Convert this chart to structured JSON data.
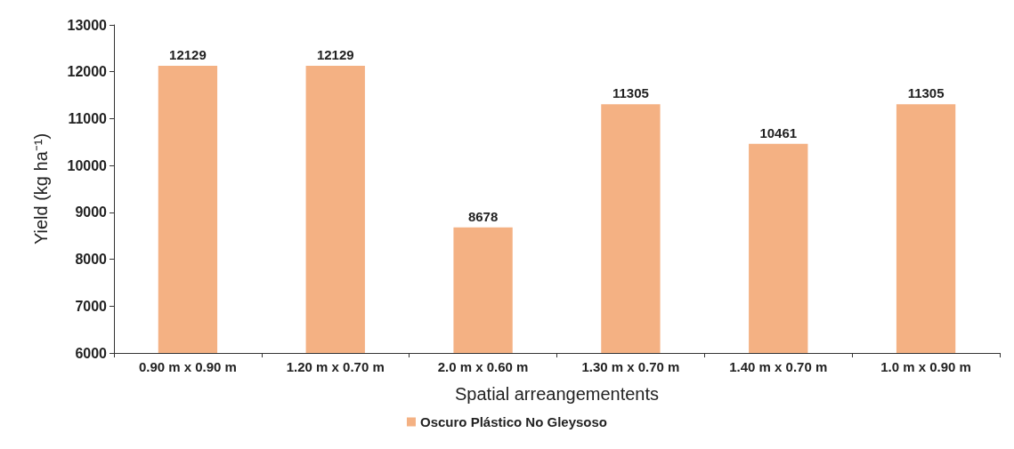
{
  "chart_data": {
    "type": "bar",
    "xlabel": "Spatial arreangementents",
    "ylabel": "Yield (kg ha⁻¹)",
    "categories": [
      "0.90 m x 0.90 m",
      "1.20 m x 0.70 m",
      "2.0 m x 0.60 m",
      "1.30 m x 0.70 m",
      "1.40 m x 0.70 m",
      "1.0 m x 0.90 m"
    ],
    "series": [
      {
        "name": "Oscuro Plástico No Gleysoso",
        "color": "#f4b183",
        "values": [
          12129,
          12129,
          8678,
          11305,
          10461,
          11305
        ]
      }
    ],
    "ylim": [
      6000,
      13000
    ],
    "yticks": [
      6000,
      7000,
      8000,
      9000,
      10000,
      11000,
      12000,
      13000
    ],
    "grid": false,
    "legend": "bottom",
    "data_labels": true
  }
}
